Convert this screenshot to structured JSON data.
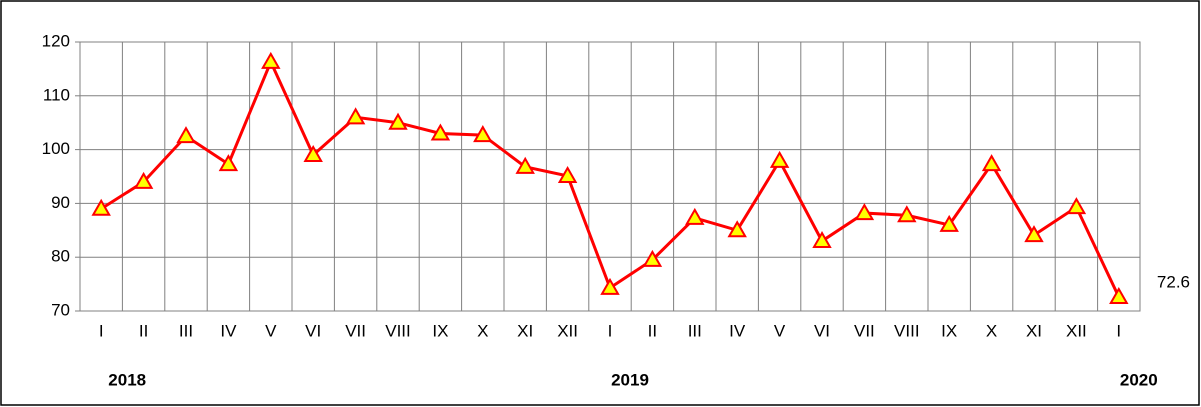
{
  "chart_data": {
    "type": "line",
    "categories": [
      "I",
      "II",
      "III",
      "IV",
      "V",
      "VI",
      "VII",
      "VIII",
      "IX",
      "X",
      "XI",
      "XII",
      "I",
      "II",
      "III",
      "IV",
      "V",
      "VI",
      "VII",
      "VIII",
      "IX",
      "X",
      "XI",
      "XII",
      "I"
    ],
    "years": [
      "2018",
      "2019",
      "2020"
    ],
    "series": [
      {
        "color": "#ff0000",
        "marker_color": "#ffff00",
        "values": [
          89,
          94,
          102.5,
          97.3,
          116.3,
          99,
          106,
          105,
          103,
          102.7,
          96.8,
          95.1,
          74.3,
          79.5,
          87.3,
          85,
          97.9,
          83,
          88.2,
          87.8,
          86,
          97.3,
          84.1,
          89.3,
          72.6
        ]
      }
    ],
    "ylim": [
      70,
      120
    ],
    "yticks": [
      70,
      80,
      90,
      100,
      110,
      120
    ],
    "grid": true
  }
}
